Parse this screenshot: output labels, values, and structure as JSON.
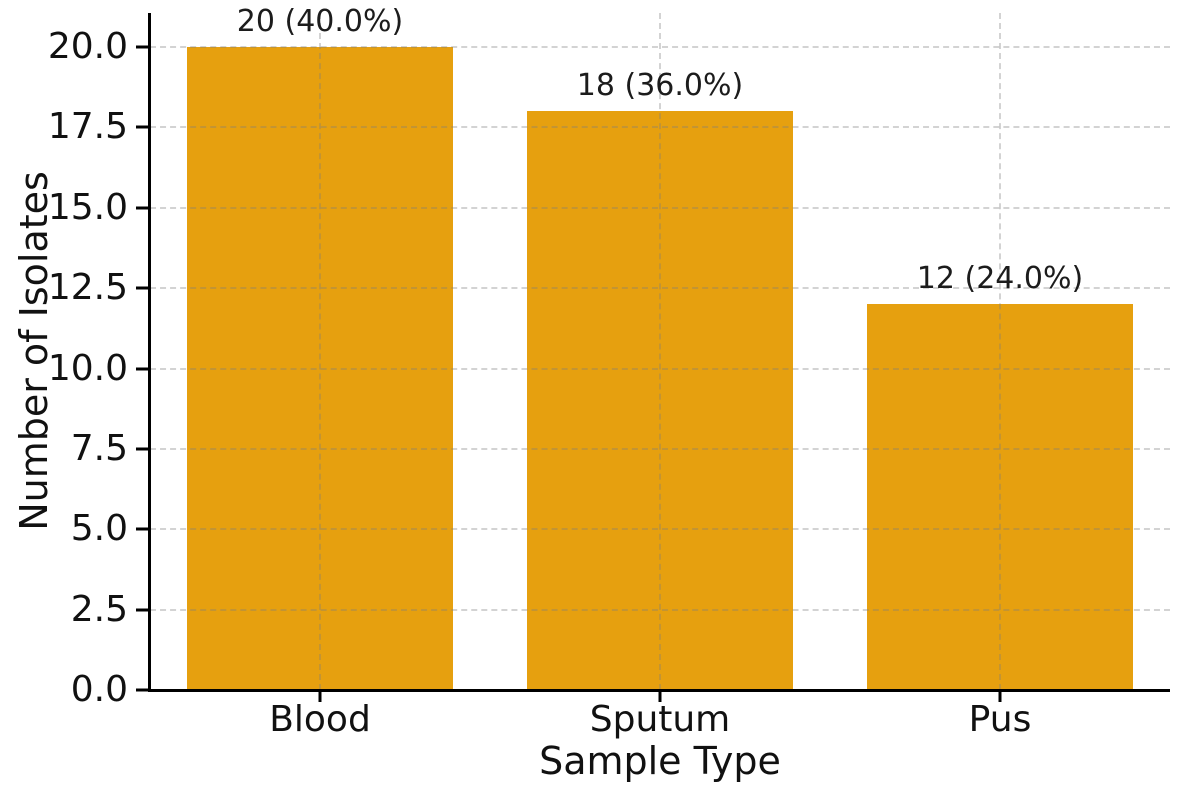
{
  "chart_data": {
    "type": "bar",
    "xlabel": "Sample Type",
    "ylabel": "Number of Isolates",
    "categories": [
      "Blood",
      "Sputum",
      "Pus"
    ],
    "values": [
      20,
      18,
      12
    ],
    "percentages": [
      40.0,
      36.0,
      24.0
    ],
    "bar_labels": [
      "20 (40.0%)",
      "18 (36.0%)",
      "12 (24.0%)"
    ],
    "series": [
      {
        "name": "Number of Isolates",
        "values": [
          20,
          18,
          12
        ]
      }
    ],
    "yticks": [
      0.0,
      2.5,
      5.0,
      7.5,
      10.0,
      12.5,
      15.0,
      17.5,
      20.0
    ],
    "ytick_labels": [
      "0.0",
      "2.5",
      "5.0",
      "7.5",
      "10.0",
      "12.5",
      "15.0",
      "17.5",
      "20.0"
    ],
    "ylim": [
      0,
      21.06
    ],
    "grid": true,
    "grid_style": "dashed",
    "legend_position": "none",
    "bar_color": "#E6A00F",
    "grid_color": "#cdcdcd",
    "axis_color": "#000000",
    "text_color": "#161616",
    "background_color": "#ffffff"
  }
}
